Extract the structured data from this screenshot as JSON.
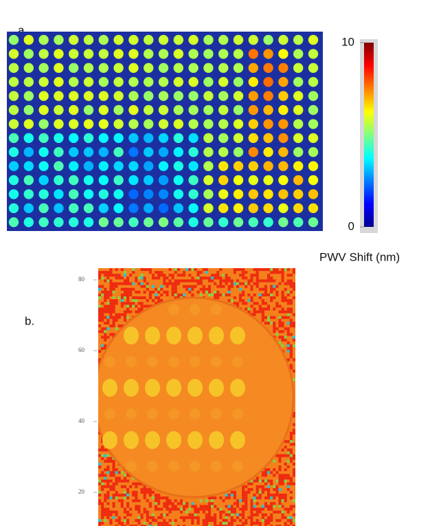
{
  "panel_a": {
    "label": "a.",
    "colorbar": {
      "ticks": [
        0,
        10
      ],
      "lim": [
        0,
        10
      ],
      "label": "PWV Shift (nm)"
    }
  },
  "panel_b": {
    "label": "b.",
    "yticks": [
      20,
      40,
      60,
      80
    ],
    "ylim": [
      10.5,
      83.3
    ]
  }
}
